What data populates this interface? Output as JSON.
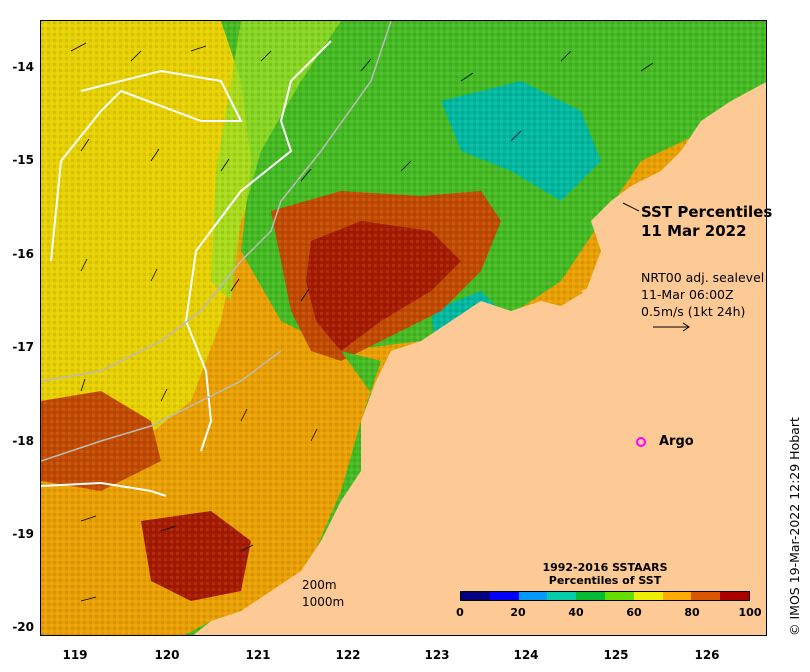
{
  "map": {
    "title_line1": "SST Percentiles",
    "title_line2": "11 Mar 2022",
    "current_source": "NRT00 adj. sealevel",
    "current_time": "11-Mar 06:00Z",
    "current_scale": "0.5m/s (1kt 24h)",
    "argo_label": "Argo",
    "scale_200m": "200m",
    "scale_1000m": "1000m",
    "copyright": "© IMOS 19-Mar-2022 12:29 Hobart",
    "lon_ticks": [
      "119",
      "120",
      "121",
      "122",
      "123",
      "124",
      "125",
      "126"
    ],
    "lat_ticks": [
      "-14",
      "-15",
      "-16",
      "-17",
      "-18",
      "-19",
      "-20"
    ],
    "legend": {
      "title_line1": "1992-2016 SSTAARS",
      "title_line2": "Percentiles of SST",
      "ticks": [
        "0",
        "20",
        "40",
        "60",
        "80",
        "100"
      ],
      "colors": [
        "#000080",
        "#0000ff",
        "#0099ff",
        "#00ccaa",
        "#00bb33",
        "#66dd00",
        "#eeee00",
        "#ffaa00",
        "#dd5500",
        "#aa0000"
      ]
    },
    "colors": {
      "land": "#fdc995",
      "argo": "#ff00ff",
      "sea_warm": "#eaa000",
      "sea_hot": "#a61a00",
      "sea_green": "#44bb22",
      "sea_teal": "#00b8a0"
    }
  }
}
